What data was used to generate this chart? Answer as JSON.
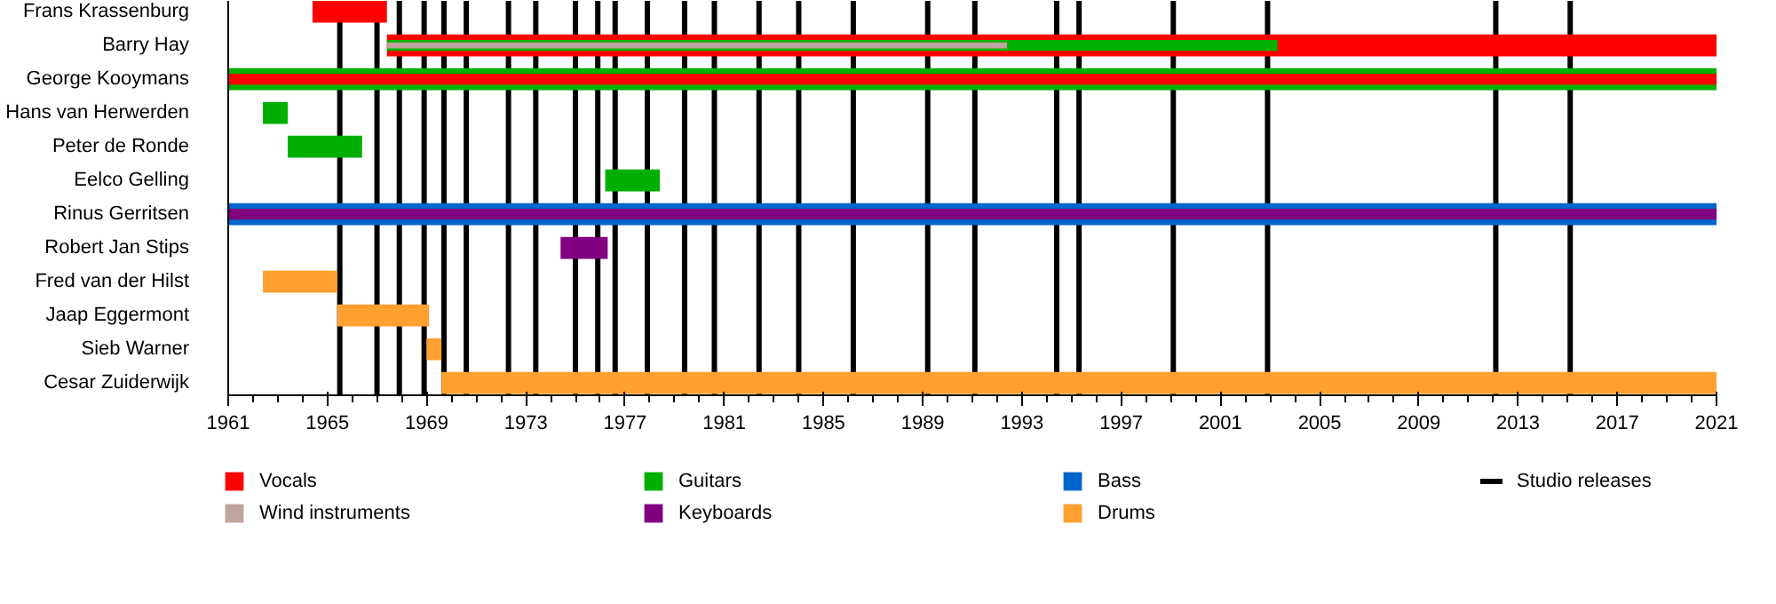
{
  "chart_data": {
    "type": "bar",
    "orientation": "horizontal",
    "categories": [
      "Frans Krassenburg",
      "Barry Hay",
      "George Kooymans",
      "Hans van Herwerden",
      "Peter de Ronde",
      "Eelco Gelling",
      "Rinus Gerritsen",
      "Robert Jan Stips",
      "Fred van der Hilst",
      "Jaap Eggermont",
      "Sieb Warner",
      "Cesar Zuiderwijk"
    ],
    "series": [
      {
        "name": "Vocals",
        "color": "#ff0000",
        "base": [
          1964.4,
          1967.4,
          1961,
          null,
          null,
          null,
          null,
          null,
          null,
          null,
          null,
          null
        ],
        "values": [
          3.0,
          53.6,
          60,
          null,
          null,
          null,
          null,
          null,
          null,
          null,
          null,
          null
        ]
      },
      {
        "name": "Wind instruments",
        "color": "#bfa59c",
        "base": [
          null,
          1967.4,
          null,
          null,
          null,
          null,
          null,
          null,
          null,
          null,
          null,
          null
        ],
        "values": [
          null,
          25.0,
          null,
          null,
          null,
          null,
          null,
          null,
          null,
          null,
          null,
          null
        ]
      },
      {
        "name": "Guitars",
        "color": "#00b000",
        "base": [
          null,
          1967.4,
          1961,
          1962.4,
          1963.4,
          1976.2,
          null,
          null,
          null,
          null,
          null,
          null
        ],
        "values": [
          null,
          35.9,
          60,
          1.0,
          3.0,
          2.2,
          null,
          null,
          null,
          null,
          null,
          null
        ]
      },
      {
        "name": "Keyboards",
        "color": "#800080",
        "base": [
          null,
          null,
          null,
          null,
          null,
          null,
          1961,
          1974.4,
          null,
          null,
          null,
          null
        ],
        "values": [
          null,
          null,
          null,
          null,
          null,
          null,
          60,
          1.9,
          null,
          null,
          null,
          null
        ]
      },
      {
        "name": "Bass",
        "color": "#0066cc",
        "base": [
          null,
          null,
          null,
          null,
          null,
          null,
          1961,
          null,
          null,
          null,
          null,
          null
        ],
        "values": [
          null,
          null,
          null,
          null,
          null,
          null,
          60,
          null,
          null,
          null,
          null,
          null
        ]
      },
      {
        "name": "Drums",
        "color": "#ffa030",
        "base": [
          null,
          null,
          null,
          null,
          null,
          null,
          null,
          null,
          1962.4,
          1965.4,
          1969.0,
          1969.6
        ],
        "values": [
          null,
          null,
          null,
          null,
          null,
          null,
          null,
          null,
          3.0,
          3.7,
          0.6,
          51.4
        ]
      }
    ],
    "xlim": [
      1961,
      2021
    ],
    "xticks": [
      1961,
      1965,
      1969,
      1973,
      1977,
      1981,
      1985,
      1989,
      1993,
      1997,
      2001,
      2005,
      2009,
      2013,
      2017,
      2021
    ],
    "ref_lines": [
      {
        "axis": "x",
        "value": 1965.5,
        "color": "#000000"
      },
      {
        "axis": "x",
        "value": 1967.0,
        "color": "#000000"
      },
      {
        "axis": "x",
        "value": 1967.9,
        "color": "#000000"
      },
      {
        "axis": "x",
        "value": 1968.9,
        "color": "#000000"
      },
      {
        "axis": "x",
        "value": 1969.7,
        "color": "#000000"
      },
      {
        "axis": "x",
        "value": 1970.6,
        "color": "#000000"
      },
      {
        "axis": "x",
        "value": 1972.3,
        "color": "#000000"
      },
      {
        "axis": "x",
        "value": 1973.4,
        "color": "#000000"
      },
      {
        "axis": "x",
        "value": 1975.0,
        "color": "#000000"
      },
      {
        "axis": "x",
        "value": 1975.9,
        "color": "#000000"
      },
      {
        "axis": "x",
        "value": 1976.6,
        "color": "#000000"
      },
      {
        "axis": "x",
        "value": 1977.9,
        "color": "#000000"
      },
      {
        "axis": "x",
        "value": 1979.4,
        "color": "#000000"
      },
      {
        "axis": "x",
        "value": 1980.6,
        "color": "#000000"
      },
      {
        "axis": "x",
        "value": 1982.4,
        "color": "#000000"
      },
      {
        "axis": "x",
        "value": 1984.0,
        "color": "#000000"
      },
      {
        "axis": "x",
        "value": 1986.2,
        "color": "#000000"
      },
      {
        "axis": "x",
        "value": 1989.2,
        "color": "#000000"
      },
      {
        "axis": "x",
        "value": 1991.1,
        "color": "#000000"
      },
      {
        "axis": "x",
        "value": 1994.4,
        "color": "#000000"
      },
      {
        "axis": "x",
        "value": 1995.3,
        "color": "#000000"
      },
      {
        "axis": "x",
        "value": 1999.1,
        "color": "#000000"
      },
      {
        "axis": "x",
        "value": 2002.9,
        "color": "#000000"
      },
      {
        "axis": "x",
        "value": 2012.1,
        "color": "#000000"
      },
      {
        "axis": "x",
        "value": 2015.1,
        "color": "#000000"
      }
    ],
    "annotations": [
      "Studio releases"
    ],
    "legend": "bottom",
    "grid": false
  }
}
